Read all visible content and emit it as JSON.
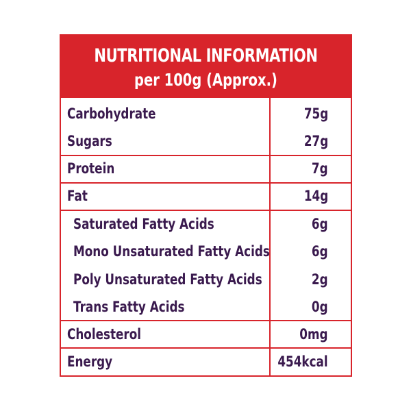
{
  "header": {
    "title": "NUTRITIONAL INFORMATION",
    "subtitle": "per 100g (Approx.)"
  },
  "rows": [
    {
      "label": "Carbohydrate",
      "value": "75g"
    },
    {
      "label": "Sugars",
      "value": "27g"
    },
    {
      "label": "Protein",
      "value": "7g"
    },
    {
      "label": "Fat",
      "value": "14g"
    },
    {
      "label": "Saturated Fatty Acids",
      "value": "6g"
    },
    {
      "label": "Mono Unsaturated Fatty Acids",
      "value": "6g"
    },
    {
      "label": "Poly Unsaturated Fatty Acids",
      "value": "2g"
    },
    {
      "label": "Trans Fatty Acids",
      "value": "0g"
    },
    {
      "label": "Cholesterol",
      "value": "0mg"
    },
    {
      "label": "Energy",
      "value": "454kcal"
    }
  ],
  "colors": {
    "accent": "#d8242b",
    "text": "#3a1a4e",
    "background": "#ffffff"
  }
}
